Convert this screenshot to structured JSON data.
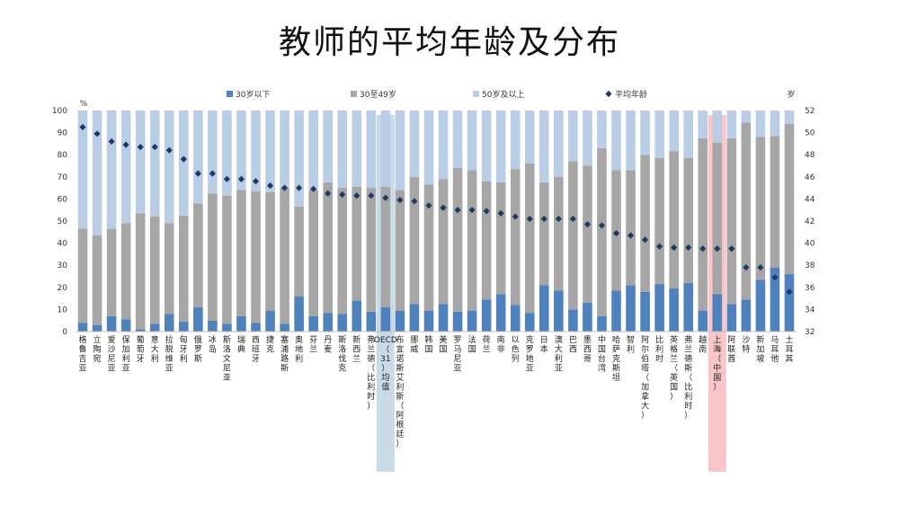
{
  "title": "教师的平均年龄及分布",
  "chart_data": {
    "type": "bar",
    "stacked": true,
    "left_unit": "%",
    "right_unit": "岁",
    "left_axis": {
      "min": 0,
      "max": 100,
      "ticks": [
        0,
        10,
        20,
        30,
        40,
        50,
        60,
        70,
        80,
        90,
        100
      ]
    },
    "right_axis": {
      "min": 32,
      "max": 52,
      "ticks": [
        32,
        34,
        36,
        38,
        40,
        42,
        44,
        46,
        48,
        50,
        52
      ]
    },
    "legend": {
      "position": "top",
      "items": [
        "30岁以下",
        "30至49岁",
        "50岁及以上",
        "平均年龄"
      ]
    },
    "categories": [
      "格鲁吉亚",
      "立陶宛",
      "爱沙尼亚",
      "保加利亚",
      "葡萄牙",
      "意大利",
      "拉脱维亚",
      "匈牙利",
      "俄罗斯",
      "冰岛",
      "斯洛文尼亚",
      "瑞典",
      "西班牙",
      "捷克",
      "塞浦路斯",
      "奥地利",
      "芬兰",
      "丹麦",
      "斯洛伐克",
      "新西兰",
      "弗兰德（比利时）",
      "OECD（31）均值",
      "布宜诺斯艾利斯（阿根廷）",
      "挪威",
      "韩国",
      "美国",
      "罗马尼亚",
      "法国",
      "荷兰",
      "南非",
      "以色列",
      "克罗地亚",
      "日本",
      "澳大利亚",
      "巴西",
      "墨西哥",
      "中国台湾",
      "哈萨克斯坦",
      "智利",
      "阿尔伯塔（加拿大）",
      "比利时",
      "英格兰（英国）",
      "弗兰德斯（比利时）",
      "越南",
      "上海（中国）",
      "阿联酋",
      "沙特",
      "新加坡",
      "马耳他",
      "土耳其"
    ],
    "series": [
      {
        "name": "30岁以下",
        "color": "#4F81BD",
        "values": [
          4,
          3,
          7,
          5.5,
          1,
          3.5,
          8,
          4.5,
          11,
          5,
          3.5,
          7,
          4,
          9.5,
          3.5,
          16,
          7,
          8.5,
          8,
          14,
          9,
          11,
          9.5,
          12.5,
          9.5,
          12.5,
          9,
          9.5,
          14.5,
          17,
          12,
          8.5,
          21,
          18.5,
          10,
          13,
          7,
          18.5,
          21,
          18,
          21.5,
          19.5,
          22,
          9.5,
          17,
          12.5,
          14.5,
          23.5,
          29,
          26
        ]
      },
      {
        "name": "30至49岁",
        "color": "#A6A6A6",
        "values": [
          42.5,
          40.5,
          39.5,
          43.5,
          52.5,
          48.5,
          41,
          48,
          47,
          57.5,
          58,
          57,
          59.5,
          53.5,
          61.5,
          40.5,
          57,
          59,
          57,
          51.5,
          56,
          54.5,
          54.5,
          57.5,
          57,
          56.5,
          65,
          63.5,
          53.5,
          50.5,
          61.5,
          67.5,
          46.5,
          51.5,
          67,
          62,
          76,
          54.5,
          52,
          62,
          57,
          62,
          56.5,
          78,
          68.5,
          75,
          80,
          64.5,
          59.5,
          68
        ]
      },
      {
        "name": "50岁及以上",
        "color": "#B9CDE5",
        "values": [
          53.5,
          56.5,
          53.5,
          51,
          46.5,
          48,
          51,
          47.5,
          42,
          37.5,
          38.5,
          36,
          36.5,
          37,
          35,
          43.5,
          36,
          32.5,
          35,
          34.5,
          35,
          34.5,
          36,
          30,
          33.5,
          31,
          26,
          27,
          32,
          32.5,
          26.5,
          24,
          32.5,
          30,
          23,
          25,
          17,
          27,
          27,
          20,
          21.5,
          18.5,
          21.5,
          12.5,
          14.5,
          12.5,
          5.5,
          12,
          11.5,
          6
        ]
      }
    ],
    "average_age": {
      "name": "平均年龄",
      "color": "#1F3864",
      "values": [
        50.5,
        49.9,
        49.2,
        48.9,
        48.7,
        48.7,
        48.4,
        47.6,
        46.3,
        46.3,
        45.8,
        45.8,
        45.6,
        45.2,
        45.0,
        45.0,
        44.9,
        44.5,
        44.4,
        44.3,
        44.3,
        44.1,
        43.9,
        43.8,
        43.4,
        43.2,
        43.0,
        43.0,
        42.9,
        42.7,
        42.4,
        42.2,
        42.2,
        42.2,
        42.2,
        41.7,
        41.6,
        40.9,
        40.7,
        40.3,
        39.7,
        39.6,
        39.6,
        39.5,
        39.5,
        39.5,
        37.8,
        37.8,
        36.9,
        35.6
      ]
    },
    "highlights": [
      {
        "category": "OECD（31）均值",
        "color": "#A9C8D8"
      },
      {
        "category": "上海（中国）",
        "color": "#F4A6AC"
      }
    ]
  }
}
